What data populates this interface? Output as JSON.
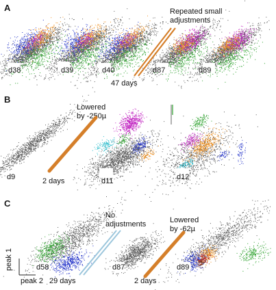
{
  "panels": [
    {
      "letter": "A",
      "note_lines": [
        "Repeated small",
        "adjustments"
      ],
      "plot_labels": [
        "d38",
        "d39",
        "d40",
        "d87",
        "d89"
      ],
      "gap_label": "47 days"
    },
    {
      "letter": "B",
      "note_lines": [
        "Lowered",
        "by -250µ"
      ],
      "plot_labels": [
        "d9",
        "d11",
        "d12"
      ],
      "gap_label": "2 days"
    },
    {
      "letter": "C",
      "note1_lines": [
        "No",
        "adjustments"
      ],
      "note2_lines": [
        "Lowered",
        "by -62µ"
      ],
      "plot_labels": [
        "d58",
        "d87",
        "d89"
      ],
      "gap_labels": [
        "29 days",
        "2 days"
      ]
    }
  ],
  "axes": {
    "y_label": "peak 1",
    "x_label": "peak 2"
  },
  "colors": {
    "gray": "#5a5a5a",
    "blue": "#2030c8",
    "green": "#2aa02a",
    "orange": "#f0901e",
    "magenta": "#c020c0",
    "cyan": "#20b8c8",
    "red": "#c02020",
    "brown": "#7a3a1a",
    "bar_orange": "#d57f2a",
    "bar_blue": "#9cc6dc"
  }
}
